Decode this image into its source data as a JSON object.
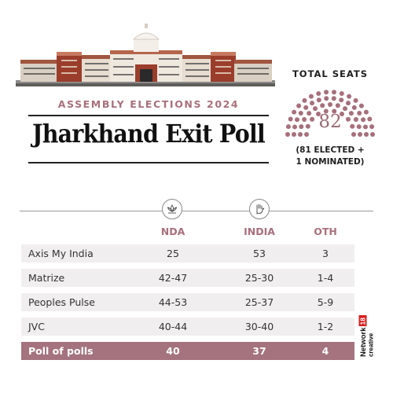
{
  "header": {
    "subtitle": "ASSEMBLY ELECTIONS 2024",
    "title": "Jharkhand Exit Poll"
  },
  "seats": {
    "label": "TOTAL SEATS",
    "total": "82",
    "note_line1": "(81 ELECTED +",
    "note_line2": "1 NOMINATED)"
  },
  "table": {
    "columns": [
      "NDA",
      "INDIA",
      "OTH"
    ],
    "rows": [
      {
        "name": "Axis My India",
        "values": [
          "25",
          "53",
          "3"
        ]
      },
      {
        "name": "Matrize",
        "values": [
          "42-47",
          "25-30",
          "1-4"
        ]
      },
      {
        "name": "Peoples Pulse",
        "values": [
          "44-53",
          "25-37",
          "5-9"
        ]
      },
      {
        "name": "JVC",
        "values": [
          "40-44",
          "30-40",
          "1-2"
        ]
      }
    ],
    "total_row": {
      "name": "Poll of polls",
      "values": [
        "40",
        "37",
        "4"
      ]
    }
  },
  "icons": {
    "nda": "lotus-icon",
    "india": "hand-icon"
  },
  "brand": {
    "name": "Network",
    "number": "18",
    "tag": "creative"
  },
  "colors": {
    "accent": "#a4737e",
    "accent_text": "#a8707c",
    "row_bg": "#f1eef0",
    "seat_dot": "#a66f7c"
  }
}
